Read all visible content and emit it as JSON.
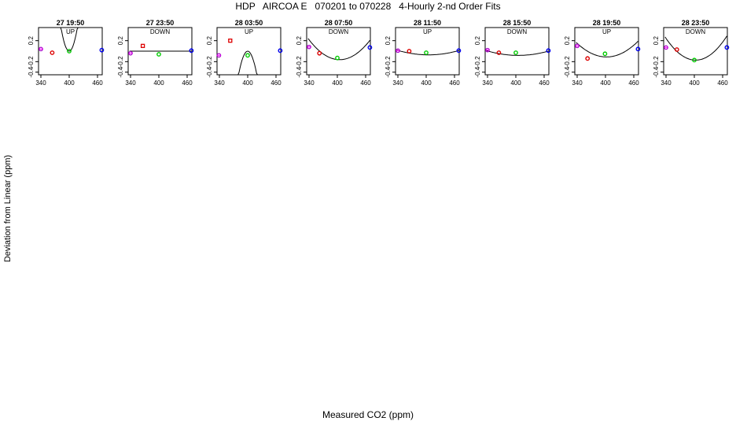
{
  "title": "HDP   AIRCOA E   070201 to 070228   4-Hourly 2-nd Order Fits",
  "ylabel": "Deviation from Linear (ppm)",
  "xlabel": "Measured CO2 (ppm)",
  "colors": {
    "purple": "#aa00cc",
    "red": "#dd0000",
    "green": "#00cc00",
    "blue": "#0000ee",
    "curve": "#000000"
  },
  "chart_data": [
    {
      "type": "scatter",
      "title": "27 19:50",
      "subtitle": "UP",
      "xlim": [
        335,
        470
      ],
      "ylim": [
        -0.45,
        0.45
      ],
      "xticks": [
        340,
        400,
        460
      ],
      "yticks": [
        -0.4,
        -0.2,
        0.2
      ],
      "points": [
        [
          340,
          0.04
        ],
        [
          364,
          -0.03
        ],
        [
          400,
          0.0
        ],
        [
          469,
          0.02
        ]
      ],
      "fit": [
        0.0015,
        -1.2,
        240.0
      ]
    },
    {
      "type": "scatter",
      "title": "27 23:50",
      "subtitle": "DOWN",
      "xlim": [
        335,
        470
      ],
      "ylim": [
        -0.45,
        0.45
      ],
      "xticks": [
        340,
        400,
        460
      ],
      "yticks": [
        -0.4,
        -0.2,
        0.2
      ],
      "points": [
        [
          340,
          -0.04
        ],
        [
          366,
          0.1
        ],
        [
          400,
          -0.06
        ],
        [
          469,
          0.01
        ]
      ],
      "fit": [
        0.0,
        0.0,
        0.0
      ]
    },
    {
      "type": "scatter",
      "title": "28 03:50",
      "subtitle": "UP",
      "xlim": [
        335,
        470
      ],
      "ylim": [
        -0.45,
        0.45
      ],
      "xticks": [
        340,
        400,
        460
      ],
      "yticks": [
        -0.4,
        -0.2,
        0.2
      ],
      "points": [
        [
          339,
          -0.08
        ],
        [
          363,
          0.2
        ],
        [
          400,
          -0.08
        ],
        [
          469,
          0.01
        ]
      ],
      "fit": [
        -0.0012,
        0.96,
        -192.0
      ]
    },
    {
      "type": "scatter",
      "title": "28 07:50",
      "subtitle": "DOWN",
      "xlim": [
        335,
        470
      ],
      "ylim": [
        -0.45,
        0.45
      ],
      "xticks": [
        340,
        400,
        460
      ],
      "yticks": [
        -0.4,
        -0.2,
        0.2
      ],
      "points": [
        [
          340,
          0.08
        ],
        [
          362,
          -0.04
        ],
        [
          400,
          -0.13
        ],
        [
          469,
          0.07
        ]
      ],
      "fit": [
        9e-05,
        -0.0729,
        14.6
      ]
    },
    {
      "type": "scatter",
      "title": "28 11:50",
      "subtitle": "UP",
      "xlim": [
        335,
        470
      ],
      "ylim": [
        -0.45,
        0.45
      ],
      "xticks": [
        340,
        400,
        460
      ],
      "yticks": [
        -0.4,
        -0.2,
        0.2
      ],
      "points": [
        [
          340,
          0.01
        ],
        [
          364,
          0.0
        ],
        [
          400,
          -0.03
        ],
        [
          469,
          0.01
        ]
      ],
      "fit": [
        2e-05,
        -0.0162,
        3.21
      ]
    },
    {
      "type": "scatter",
      "title": "28 15:50",
      "subtitle": "DOWN",
      "xlim": [
        335,
        470
      ],
      "ylim": [
        -0.45,
        0.45
      ],
      "xticks": [
        340,
        400,
        460
      ],
      "yticks": [
        -0.4,
        -0.2,
        0.2
      ],
      "points": [
        [
          340,
          0.02
        ],
        [
          364,
          -0.03
        ],
        [
          400,
          -0.03
        ],
        [
          469,
          0.01
        ]
      ],
      "fit": [
        2e-05,
        -0.0162,
        3.2
      ]
    },
    {
      "type": "scatter",
      "title": "28 19:50",
      "subtitle": "UP",
      "xlim": [
        335,
        470
      ],
      "ylim": [
        -0.45,
        0.45
      ],
      "xticks": [
        340,
        400,
        460
      ],
      "yticks": [
        -0.4,
        -0.2,
        0.2
      ],
      "points": [
        [
          340,
          0.1
        ],
        [
          362,
          -0.14
        ],
        [
          399,
          -0.05
        ],
        [
          469,
          0.04
        ]
      ],
      "fit": [
        6.7e-05,
        -0.0539,
        10.73
      ]
    },
    {
      "type": "scatter",
      "title": "28 23:50",
      "subtitle": "DOWN",
      "xlim": [
        335,
        470
      ],
      "ylim": [
        -0.45,
        0.45
      ],
      "xticks": [
        340,
        400,
        460
      ],
      "yticks": [
        -0.4,
        -0.2,
        0.2
      ],
      "points": [
        [
          340,
          0.07
        ],
        [
          363,
          0.03
        ],
        [
          400,
          -0.17
        ],
        [
          469,
          0.07
        ]
      ],
      "fit": [
        0.000105,
        -0.0846,
        16.87
      ]
    }
  ]
}
